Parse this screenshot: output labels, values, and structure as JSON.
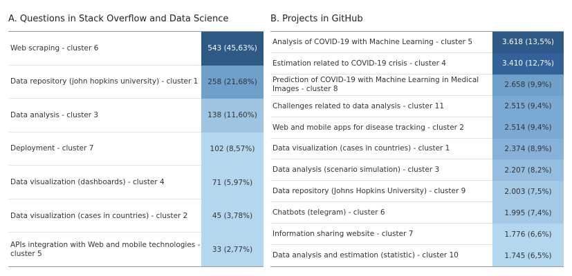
{
  "chart_data": [
    {
      "type": "table",
      "title": "A. Questions in Stack Overflow and Data Science",
      "rows": [
        {
          "label": "Web scraping - cluster 6",
          "value": 543,
          "text": "543 (45,63%)",
          "color": "#2e5a88"
        },
        {
          "label": "Data repository (john hopkins university) - cluster 1",
          "value": 258,
          "text": "258 (21,68%)",
          "color": "#6f9fcb"
        },
        {
          "label": "Data analysis - cluster 3",
          "value": 138,
          "text": "138 (11,60%)",
          "color": "#9dc4e1"
        },
        {
          "label": "Deployment - cluster 7",
          "value": 102,
          "text": "102 (8,57%)",
          "color": "#b3d7ee"
        },
        {
          "label": "Data visualization (dashboards) - cluster 4",
          "value": 71,
          "text": "71 (5,97%)",
          "color": "#b3d7ee"
        },
        {
          "label": "Data visualization (cases in countries) - cluster 2",
          "value": 45,
          "text": "45 (3,78%)",
          "color": "#b3d7ee"
        },
        {
          "label": "APIs integration with Web and mobile technologies - cluster 5",
          "value": 33,
          "text": "33 (2,77%)",
          "color": "#b3d7ee"
        }
      ]
    },
    {
      "type": "table",
      "title": "B. Projects in GitHub",
      "rows": [
        {
          "label": "Analysis of COVID-19 with Machine Learning - cluster 5",
          "value": 3618,
          "text": "3.618 (13,5%)",
          "color": "#2e5a88"
        },
        {
          "label": "Estimation related to COVID-19 crisis - cluster 4",
          "value": 3410,
          "text": "3.410 (12,7%)",
          "color": "#33629a"
        },
        {
          "label": "Prediction of COVID-19 with Machine Learning in Medical Images - cluster 8",
          "value": 2658,
          "text": "2.658 (9,9%)",
          "color": "#6f9fcb"
        },
        {
          "label": "Challenges related to data analysis - cluster 11",
          "value": 2515,
          "text": "2.515 (9,4%)",
          "color": "#7aa9d3"
        },
        {
          "label": "Web and mobile apps for disease tracking - cluster 2",
          "value": 2514,
          "text": "2.514 (9,4%)",
          "color": "#7aa9d3"
        },
        {
          "label": "Data visualization (cases in countries) - cluster 1",
          "value": 2374,
          "text": "2.374 (8,9%)",
          "color": "#86b2d9"
        },
        {
          "label": "Data analysis (scenario simulation) - cluster 3",
          "value": 2207,
          "text": "2.207 (8,2%)",
          "color": "#95bde0"
        },
        {
          "label": "Data repository (Johns Hopkins University) - cluster 9",
          "value": 2003,
          "text": "2.003 (7,5%)",
          "color": "#a4c9e6"
        },
        {
          "label": "Chatbots (telegram) - cluster 6",
          "value": 1995,
          "text": "1.995 (7,4%)",
          "color": "#a4c9e6"
        },
        {
          "label": "Information sharing website - cluster 7",
          "value": 1776,
          "text": "1.776 (6,6%)",
          "color": "#b3d7ee"
        },
        {
          "label": "Data analysis and estimation (statistic) - cluster 10",
          "value": 1745,
          "text": "1.745 (6,5%)",
          "color": "#b3d7ee"
        }
      ]
    }
  ]
}
